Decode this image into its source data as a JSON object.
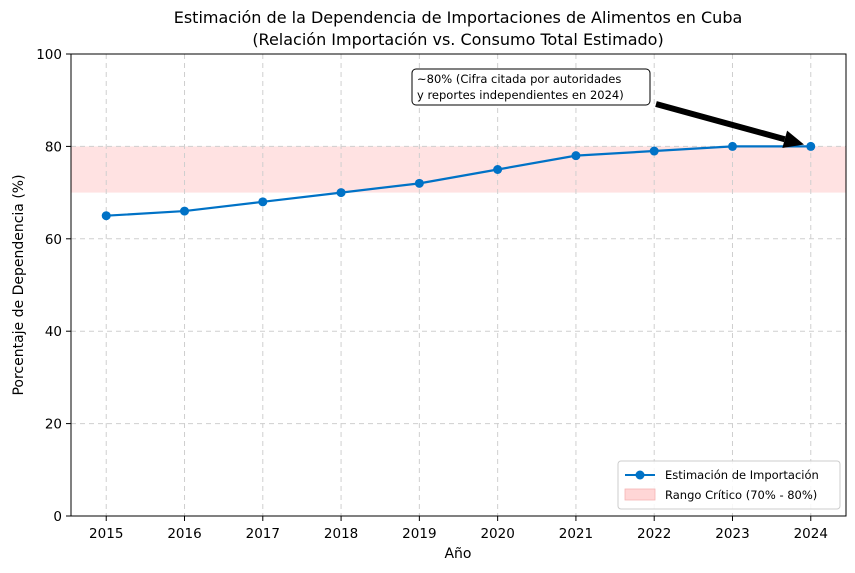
{
  "chart_data": {
    "type": "line",
    "title_line1": "Estimación de la Dependencia de Importaciones de Alimentos en Cuba",
    "title_line2": "(Relación Importación vs. Consumo Total Estimado)",
    "xlabel": "Año",
    "ylabel": "Porcentaje de Dependencia (%)",
    "x": [
      2015,
      2016,
      2017,
      2018,
      2019,
      2020,
      2021,
      2022,
      2023,
      2024
    ],
    "x_tick_labels": [
      "2015",
      "2016",
      "2017",
      "2018",
      "2019",
      "2020",
      "2021",
      "2022",
      "2023",
      "2024"
    ],
    "series": [
      {
        "name": "Estimación de Importación",
        "values": [
          65,
          66,
          68,
          70,
          72,
          75,
          78,
          79,
          80,
          80
        ],
        "color": "#0072c6"
      }
    ],
    "ylim": [
      0,
      100
    ],
    "y_ticks": [
      0,
      20,
      40,
      60,
      80,
      100
    ],
    "y_tick_labels": [
      "0",
      "20",
      "40",
      "60",
      "80",
      "100"
    ],
    "band": {
      "name": "Rango Crítico (70% - 80%)",
      "from": 70,
      "to": 80,
      "color": "#ffd6d6"
    },
    "grid": true,
    "legend_position": "lower-right",
    "annotation": {
      "line1": "~80% (Cifra citada por autoridades",
      "line2": "y reportes independientes en 2024)",
      "target_x": 2024,
      "target_y": 80,
      "text_x": 2019,
      "text_y": 90.5
    }
  }
}
